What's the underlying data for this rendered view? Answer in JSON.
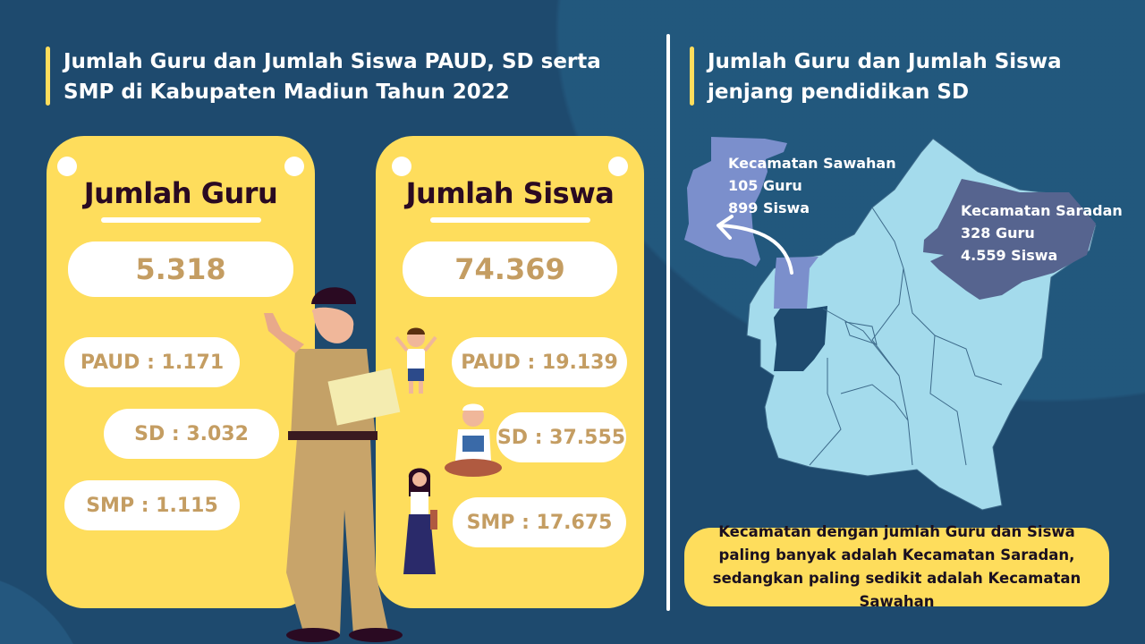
{
  "colors": {
    "background": "#1e4a6e",
    "card": "#fedd5c",
    "number": "#c49d62",
    "map_region": "#a4dbec",
    "sawahan": "#7b8fcc",
    "saradan": "#56648f"
  },
  "left": {
    "title_line1": "Jumlah Guru dan Jumlah Siswa PAUD, SD serta",
    "title_line2": "SMP di Kabupaten Madiun Tahun 2022",
    "guru_card": {
      "heading": "Jumlah Guru",
      "total": "5.318",
      "paud": "PAUD : 1.171",
      "sd": "SD : 3.032",
      "smp": "SMP : 1.115"
    },
    "siswa_card": {
      "heading": "Jumlah Siswa",
      "total": "74.369",
      "paud": "PAUD : 19.139",
      "sd": "SD : 37.555",
      "smp": "SMP : 17.675"
    }
  },
  "right": {
    "title_line1": "Jumlah Guru dan Jumlah Siswa",
    "title_line2": "jenjang pendidikan SD",
    "sawahan": {
      "name": "Kecamatan Sawahan",
      "guru": "105 Guru",
      "siswa": "899 Siswa"
    },
    "saradan": {
      "name": "Kecamatan Saradan",
      "guru": "328 Guru",
      "siswa": "4.559 Siswa"
    },
    "note": "Kecamatan dengan jumlah Guru dan Siswa paling banyak adalah Kecamatan Saradan, sedangkan paling sedikit adalah Kecamatan Sawahan"
  }
}
